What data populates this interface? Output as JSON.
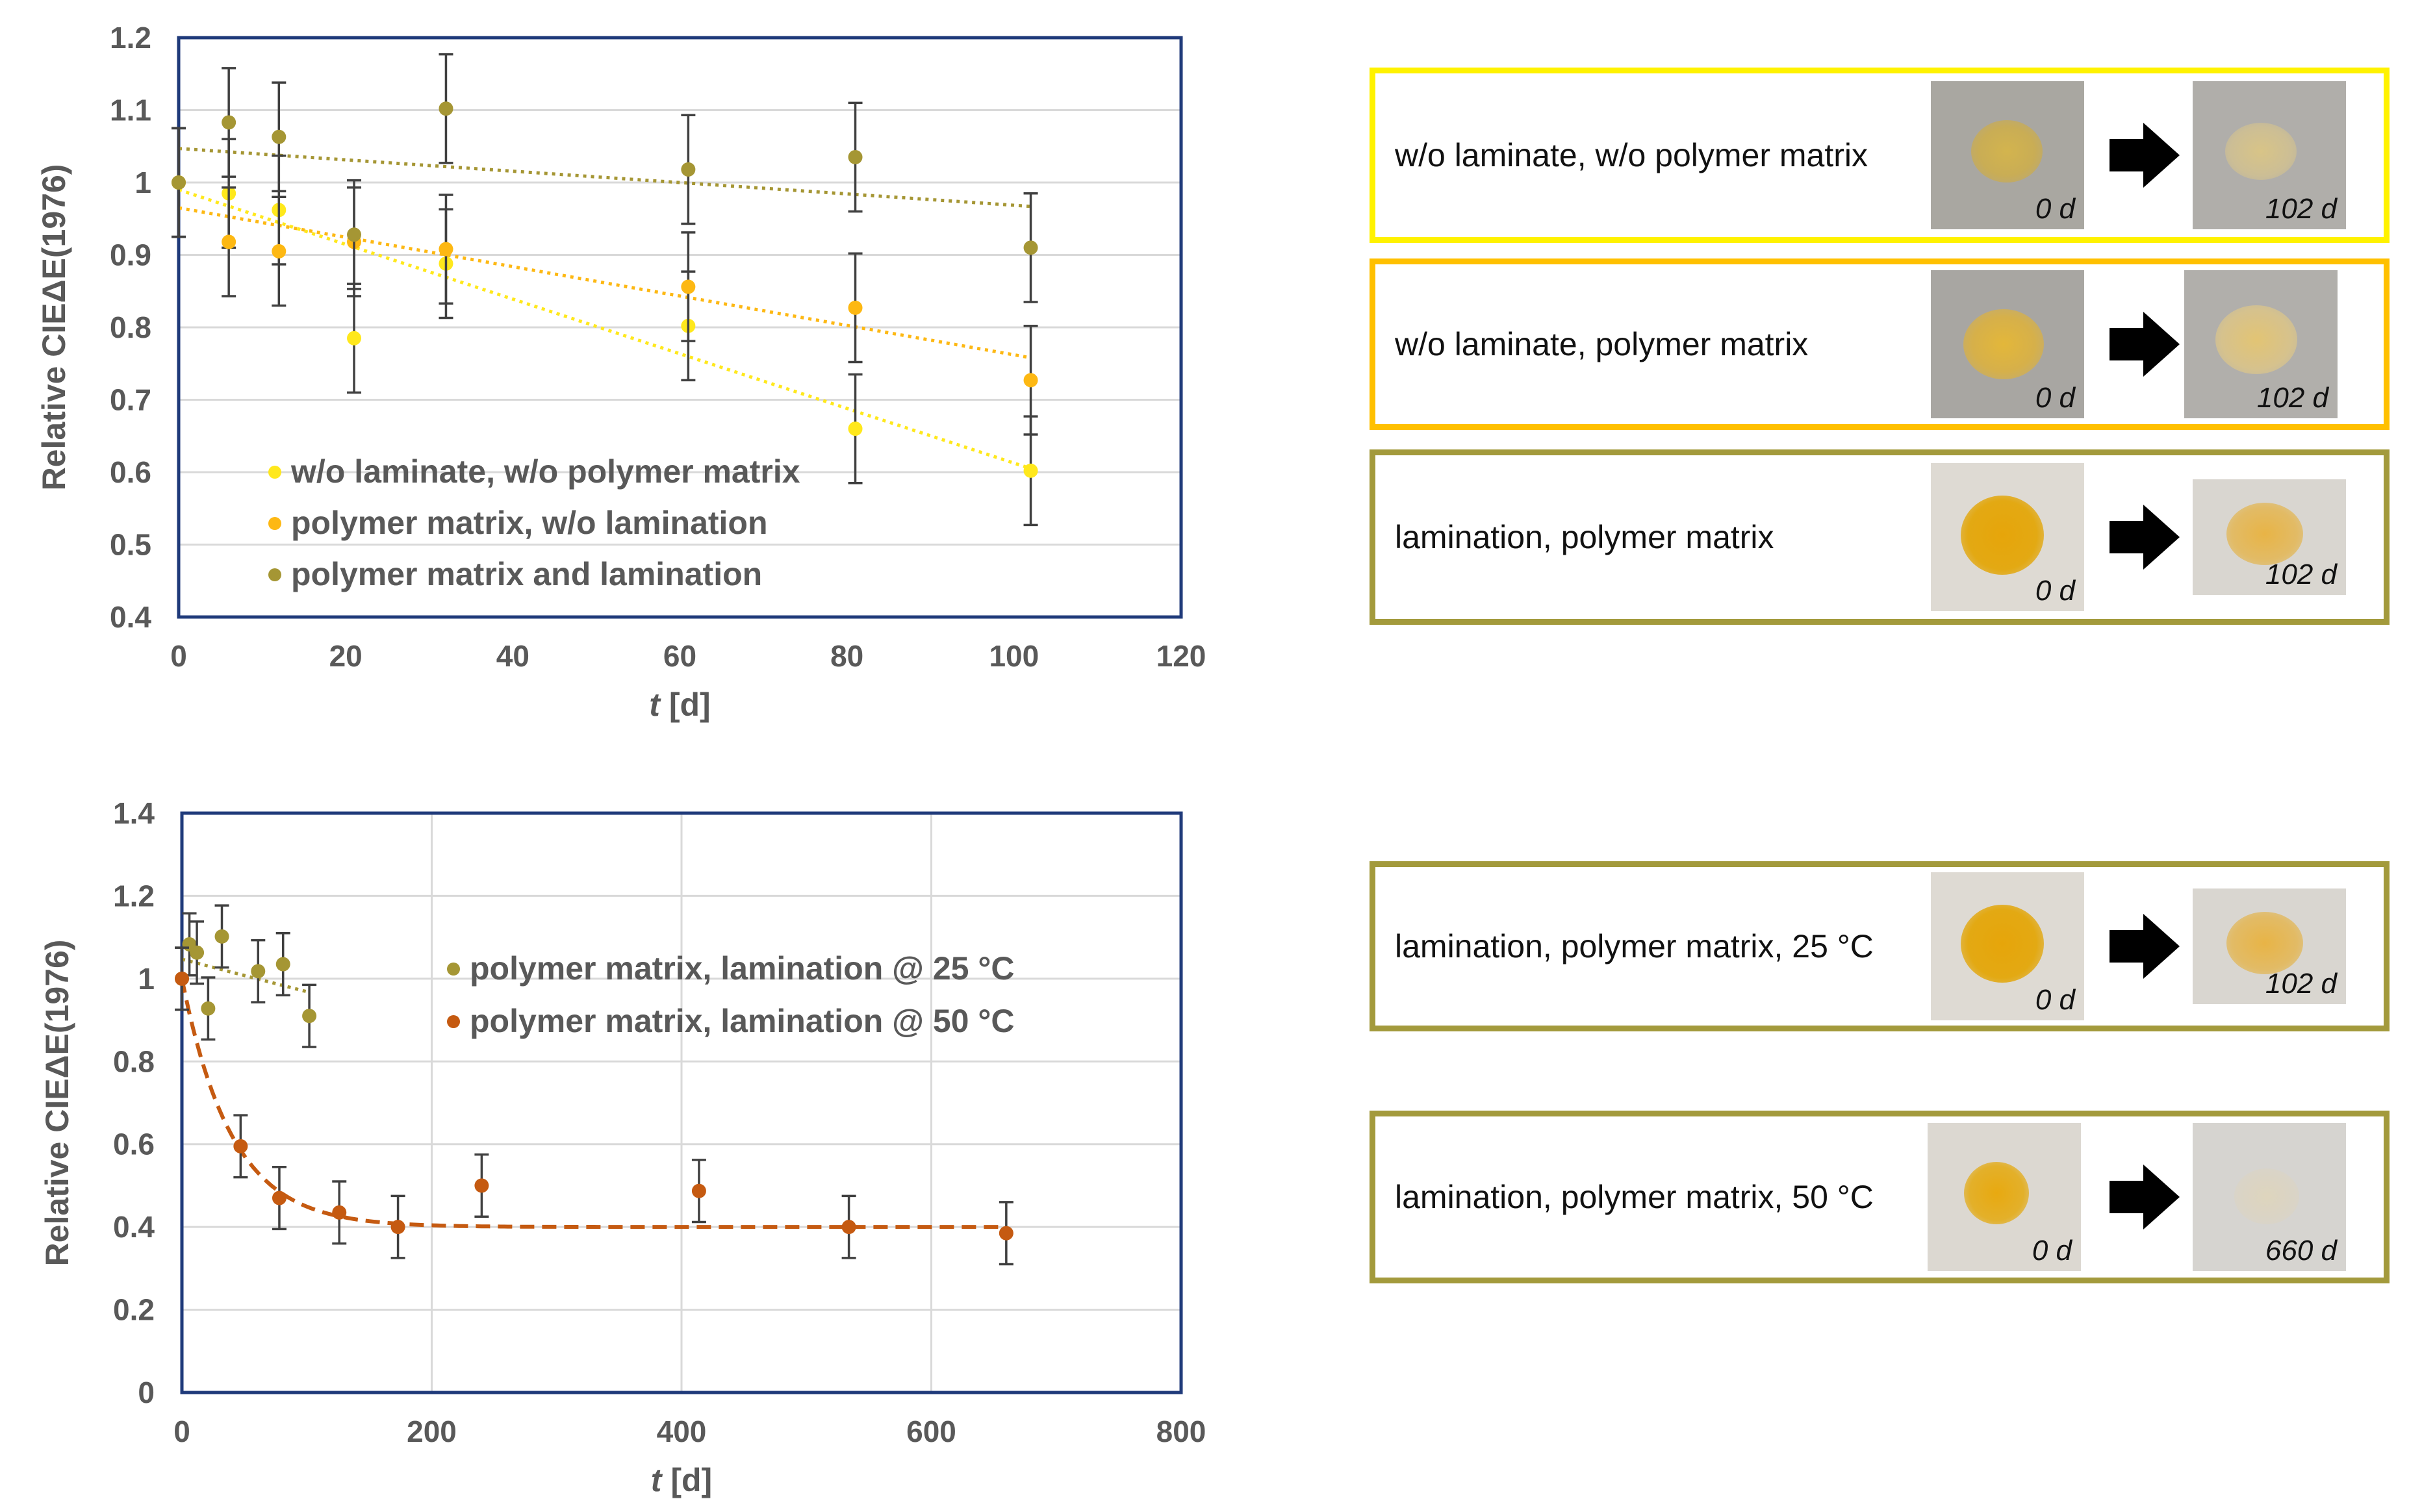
{
  "chart_data": [
    {
      "type": "scatter",
      "ylabel": "Relative CIEΔE(1976)",
      "xlabel_italic": "t",
      "xlabel_unit": " [d]",
      "xlim": [
        0,
        120
      ],
      "ylim": [
        0.4,
        1.2
      ],
      "xticks": [
        0,
        20,
        40,
        60,
        80,
        100,
        120
      ],
      "xtick_labels": [
        "0",
        "20",
        "40",
        "60",
        "80",
        "100",
        "120"
      ],
      "yticks": [
        0.4,
        0.5,
        0.6,
        0.7,
        0.8,
        0.9,
        1.0,
        1.1,
        1.2
      ],
      "ytick_labels": [
        "0.4",
        "0.5",
        "0.6",
        "0.7",
        "0.8",
        "0.9",
        "1",
        "1.1",
        "1.2"
      ],
      "grid": "horizontal",
      "legend_position": "bottom-left",
      "series": [
        {
          "name": "w/o laminate, w/o polymer matrix",
          "color": "#FFE81C",
          "x": [
            0,
            6,
            12,
            21,
            32,
            61,
            81,
            102
          ],
          "y": [
            1.0,
            0.985,
            0.962,
            0.785,
            0.888,
            0.802,
            0.66,
            0.602
          ],
          "err": [
            0.075,
            0.075,
            0.075,
            0.075,
            0.075,
            0.075,
            0.075,
            0.075
          ],
          "trend": {
            "style": "dotted",
            "x": [
              0,
              102
            ],
            "y": [
              0.99,
              0.605
            ]
          }
        },
        {
          "name": "polymer matrix, w/o lamination",
          "color": "#FDB813",
          "x": [
            0,
            6,
            12,
            21,
            32,
            61,
            81,
            102
          ],
          "y": [
            1.0,
            0.918,
            0.905,
            0.918,
            0.908,
            0.856,
            0.827,
            0.727
          ],
          "err": [
            0.075,
            0.075,
            0.075,
            0.075,
            0.075,
            0.075,
            0.075,
            0.075
          ],
          "trend": {
            "style": "dotted",
            "x": [
              0,
              102
            ],
            "y": [
              0.965,
              0.758
            ]
          }
        },
        {
          "name": "polymer matrix and lamination",
          "color": "#A59634",
          "x": [
            0,
            6,
            12,
            21,
            32,
            61,
            81,
            102
          ],
          "y": [
            1.0,
            1.083,
            1.063,
            0.928,
            1.102,
            1.018,
            1.035,
            0.91
          ],
          "err": [
            0.075,
            0.075,
            0.075,
            0.075,
            0.075,
            0.075,
            0.075,
            0.075
          ],
          "trend": {
            "style": "dotted",
            "x": [
              0,
              102
            ],
            "y": [
              1.047,
              0.967
            ]
          }
        }
      ]
    },
    {
      "type": "scatter",
      "ylabel": "Relative CIEΔE(1976)",
      "xlabel_italic": "t",
      "xlabel_unit": " [d]",
      "xlim": [
        0,
        800
      ],
      "ylim": [
        0,
        1.4
      ],
      "xticks": [
        0,
        200,
        400,
        600,
        800
      ],
      "xtick_labels": [
        "0",
        "200",
        "400",
        "600",
        "800"
      ],
      "yticks": [
        0,
        0.2,
        0.4,
        0.6,
        0.8,
        1.0,
        1.2,
        1.4
      ],
      "ytick_labels": [
        "0",
        "0.2",
        "0.4",
        "0.6",
        "0.8",
        "1",
        "1.2",
        "1.4"
      ],
      "grid": "both",
      "legend_position": "top-right",
      "series": [
        {
          "name": "polymer matrix, lamination @ 25 °C",
          "color": "#A59634",
          "x": [
            0,
            6,
            12,
            21,
            32,
            61,
            81,
            102
          ],
          "y": [
            1.0,
            1.083,
            1.063,
            0.928,
            1.102,
            1.018,
            1.035,
            0.91
          ],
          "err": [
            0.075,
            0.075,
            0.075,
            0.075,
            0.075,
            0.075,
            0.075,
            0.075
          ],
          "trend": {
            "style": "dotted",
            "x": [
              0,
              102
            ],
            "y": [
              1.047,
              0.967
            ]
          }
        },
        {
          "name": "polymer matrix, lamination @ 50 °C",
          "color": "#C55A11",
          "x": [
            0,
            47,
            78,
            126,
            173,
            240,
            414,
            534,
            660
          ],
          "y": [
            1.0,
            0.595,
            0.47,
            0.435,
            0.4,
            0.5,
            0.487,
            0.4,
            0.385
          ],
          "err": [
            0.075,
            0.075,
            0.075,
            0.075,
            0.075,
            0.075,
            0.075,
            0.075,
            0.075
          ],
          "fit": {
            "style": "dashed",
            "model": "exponential",
            "plateau": 0.4,
            "amplitude": 0.6,
            "tau": 40,
            "xmax": 660
          }
        }
      ]
    }
  ],
  "panels_top": [
    {
      "label": "w/o laminate, w/o polymer matrix",
      "border": "#FFF200",
      "from": "0 d",
      "to": "102 d"
    },
    {
      "label": "w/o laminate, polymer matrix",
      "border": "#FFC000",
      "from": "0 d",
      "to": "102 d"
    },
    {
      "label": "lamination, polymer matrix",
      "border": "#A39A3C",
      "from": "0 d",
      "to": "102 d"
    }
  ],
  "panels_bottom": [
    {
      "label": "lamination, polymer matrix, 25 °C",
      "border": "#A39A3C",
      "from": "0 d",
      "to": "102 d"
    },
    {
      "label": "lamination, polymer matrix, 50 °C",
      "border": "#A39A3C",
      "from": "0 d",
      "to": "660 d"
    }
  ]
}
